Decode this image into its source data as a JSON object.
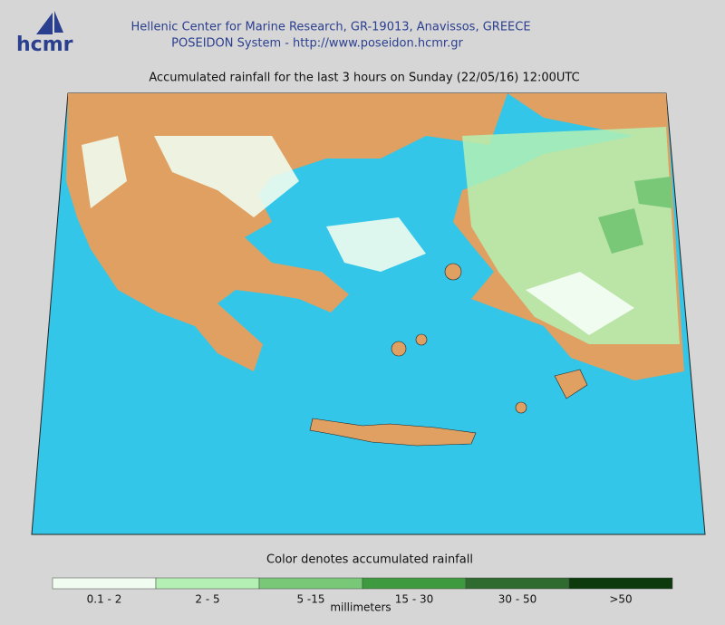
{
  "header": {
    "logo": "hcmr",
    "line1": "Hellenic Center for Marine Research, GR-19013, Anavissos, GREECE",
    "line2": "POSEIDON System - http://www.poseidon.hcmr.gr"
  },
  "map": {
    "title": "Accumulated rainfall for the last 3 hours on Sunday (22/05/16) 12:00UTC"
  },
  "legend": {
    "caption": "Color denotes accumulated rainfall",
    "unit": "millimeters",
    "items": [
      {
        "label": "0.1 - 2",
        "color": "#effcef"
      },
      {
        "label": "2 - 5",
        "color": "#b4f0b4"
      },
      {
        "label": "5 -15",
        "color": "#78c878"
      },
      {
        "label": "15 - 30",
        "color": "#3e9a3e"
      },
      {
        "label": "30 - 50",
        "color": "#2f6a2f"
      },
      {
        "label": ">50",
        "color": "#0c3a0c"
      }
    ]
  }
}
